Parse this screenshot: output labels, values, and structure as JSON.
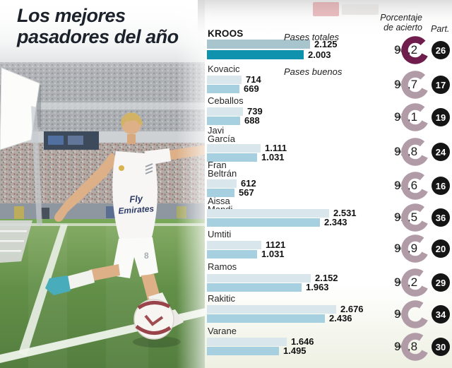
{
  "title": "Los mejores pasadores del año",
  "title_lines": [
    "Los mejores",
    "pasadores del año"
  ],
  "legend": {
    "totales": "Pases totales",
    "buenos": "Pases buenos"
  },
  "columns": {
    "accuracy_header": "Porcentaje de acierto",
    "accuracy_header_lines": [
      "Porcentaje",
      "de acierto"
    ],
    "participation_header": "Part."
  },
  "colors": {
    "bar_total": "#d9e7ed",
    "bar_good": "#a6d0e0",
    "bar_total_highlight": "#a8c4cc",
    "bar_good_highlight": "#0e92ad",
    "ring": "#b09ba7",
    "ring_highlight": "#6e1d4c",
    "badge_bg": "#151515",
    "badge_text": "#ffffff",
    "title_text": "#1b222c"
  },
  "chart_data": {
    "type": "bar",
    "orientation": "horizontal",
    "series": [
      "Pases totales",
      "Pases buenos"
    ],
    "players": [
      {
        "name": "Kroos",
        "name_lines": [
          "KROOS"
        ],
        "highlight": true,
        "pases_totales": 2125,
        "pases_totales_label": "2.125",
        "pases_buenos": 2003,
        "pases_buenos_label": "2.003",
        "accuracy_pct": 94.2,
        "accuracy_label": "94,2",
        "participation": 26
      },
      {
        "name": "Kovacic",
        "name_lines": [
          "Kovacic"
        ],
        "highlight": false,
        "pases_totales": 714,
        "pases_totales_label": "714",
        "pases_buenos": 669,
        "pases_buenos_label": "669",
        "accuracy_pct": 93.7,
        "accuracy_label": "93,7",
        "participation": 17
      },
      {
        "name": "Ceballos",
        "name_lines": [
          "Ceballos"
        ],
        "highlight": false,
        "pases_totales": 739,
        "pases_totales_label": "739",
        "pases_buenos": 688,
        "pases_buenos_label": "688",
        "accuracy_pct": 93.1,
        "accuracy_label": "93,1",
        "participation": 19
      },
      {
        "name": "Javi García",
        "name_lines": [
          "Javi",
          "García"
        ],
        "highlight": false,
        "pases_totales": 1111,
        "pases_totales_label": "1.111",
        "pases_buenos": 1031,
        "pases_buenos_label": "1.031",
        "accuracy_pct": 92.8,
        "accuracy_label": "92,8",
        "participation": 24
      },
      {
        "name": "Fran Beltrán",
        "name_lines": [
          "Fran",
          "Beltrán"
        ],
        "highlight": false,
        "pases_totales": 612,
        "pases_totales_label": "612",
        "pases_buenos": 567,
        "pases_buenos_label": "567",
        "accuracy_pct": 92.6,
        "accuracy_label": "92,6",
        "participation": 16
      },
      {
        "name": "Aissa Mandi",
        "name_lines": [
          "Aissa",
          "Mandi"
        ],
        "highlight": false,
        "pases_totales": 2531,
        "pases_totales_label": "2.531",
        "pases_buenos": 2343,
        "pases_buenos_label": "2.343",
        "accuracy_pct": 92.5,
        "accuracy_label": "92,5",
        "participation": 36
      },
      {
        "name": "Umtiti",
        "name_lines": [
          "Umtiti"
        ],
        "highlight": false,
        "pases_totales": 1121,
        "pases_totales_label": "1121",
        "pases_buenos": 1031,
        "pases_buenos_label": "1.031",
        "accuracy_pct": 91.9,
        "accuracy_label": "91,9",
        "participation": 20
      },
      {
        "name": "Ramos",
        "name_lines": [
          "Ramos"
        ],
        "highlight": false,
        "pases_totales": 2152,
        "pases_totales_label": "2.152",
        "pases_buenos": 1963,
        "pases_buenos_label": "1.963",
        "accuracy_pct": 91.2,
        "accuracy_label": "91,2",
        "participation": 29
      },
      {
        "name": "Rakitic",
        "name_lines": [
          "Rakitic"
        ],
        "highlight": false,
        "pases_totales": 2676,
        "pases_totales_label": "2.676",
        "pases_buenos": 2436,
        "pases_buenos_label": "2.436",
        "accuracy_pct": 91.0,
        "accuracy_label": "91",
        "participation": 34
      },
      {
        "name": "Varane",
        "name_lines": [
          "Varane"
        ],
        "highlight": false,
        "pases_totales": 1646,
        "pases_totales_label": "1.646",
        "pases_buenos": 1495,
        "pases_buenos_label": "1.495",
        "accuracy_pct": 90.8,
        "accuracy_label": "90,8",
        "participation": 30
      }
    ]
  }
}
